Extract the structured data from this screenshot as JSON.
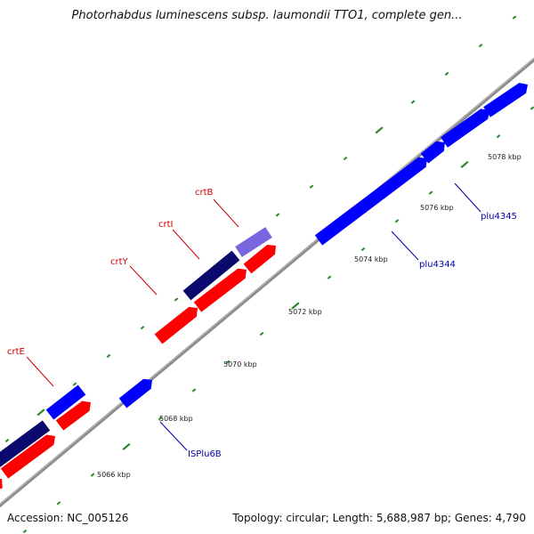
{
  "title": "Photorhabdus luminescens subsp. laumondii TTO1, complete gen...",
  "accession_label": "Accession: NC_005126",
  "summary_label": "Topology: circular; Length: 5,688,987 bp; Genes: 4,790",
  "colors": {
    "backbone": "#8c8c8c",
    "tick": "#2a8a2a",
    "gene_label_red": "#cc0000",
    "gene_label_blue": "#0000aa",
    "scale_label": "#222222",
    "gene_red": "#ff0000",
    "gene_navy": "#0a0a6e",
    "gene_blue": "#0000ff",
    "gene_lavender": "#7766dd"
  },
  "scale_labels": [
    "5066 kbp",
    "5068 kbp",
    "5070 kbp",
    "5072 kbp",
    "5074 kbp",
    "5076 kbp",
    "5078 kbp"
  ],
  "gene_labels": [
    {
      "id": "crtE",
      "text": "crtE",
      "color": "red"
    },
    {
      "id": "crtY",
      "text": "crtY",
      "color": "red"
    },
    {
      "id": "crtI",
      "text": "crtI",
      "color": "red"
    },
    {
      "id": "crtB",
      "text": "crtB",
      "color": "red"
    },
    {
      "id": "ISPlu6B",
      "text": "ISPlu6B",
      "color": "blue"
    },
    {
      "id": "plu4344",
      "text": "plu4344",
      "color": "blue"
    },
    {
      "id": "plu4345",
      "text": "plu4345",
      "color": "blue"
    }
  ]
}
